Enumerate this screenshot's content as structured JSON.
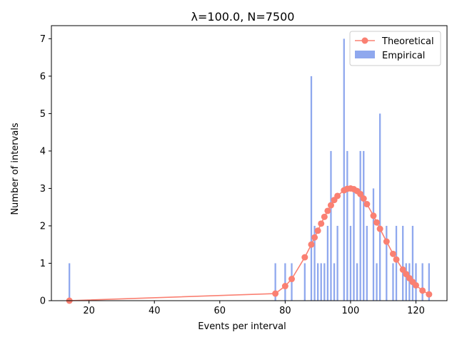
{
  "chart_data": {
    "type": "bar+line",
    "title": "λ=100.0, N=7500",
    "xlabel": "Events per interval",
    "ylabel": "Number of intervals",
    "xlim": [
      8.5,
      129.5
    ],
    "ylim": [
      0,
      7.35
    ],
    "xticks": [
      20,
      40,
      60,
      80,
      100,
      120
    ],
    "yticks": [
      0,
      1,
      2,
      3,
      4,
      5,
      6,
      7
    ],
    "grid": false,
    "legend_position": "top-right",
    "colors": {
      "theoretical": "#FA8072",
      "empirical": "#8FA8EE"
    },
    "series": [
      {
        "name": "Theoretical",
        "kind": "line",
        "x": [
          14,
          77,
          80,
          82,
          86,
          88,
          89,
          90,
          91,
          92,
          93,
          94,
          95,
          96,
          98,
          99,
          100,
          101,
          102,
          103,
          104,
          105,
          107,
          108,
          109,
          111,
          113,
          114,
          116,
          117,
          118,
          119,
          120,
          122,
          124
        ],
        "y": [
          0.0,
          0.19,
          0.39,
          0.58,
          1.16,
          1.5,
          1.69,
          1.87,
          2.06,
          2.24,
          2.4,
          2.55,
          2.69,
          2.8,
          2.95,
          2.99,
          3.0,
          2.98,
          2.93,
          2.85,
          2.73,
          2.58,
          2.27,
          2.09,
          1.92,
          1.58,
          1.25,
          1.1,
          0.83,
          0.71,
          0.6,
          0.5,
          0.41,
          0.27,
          0.17
        ]
      },
      {
        "name": "Empirical",
        "kind": "bar",
        "x": [
          14,
          77,
          80,
          82,
          86,
          88,
          89,
          90,
          91,
          92,
          93,
          94,
          95,
          96,
          98,
          99,
          100,
          101,
          102,
          103,
          104,
          105,
          107,
          108,
          109,
          111,
          113,
          114,
          116,
          117,
          118,
          119,
          120,
          122,
          124
        ],
        "values": [
          1,
          1,
          1,
          1,
          1,
          6,
          2,
          1,
          1,
          1,
          2,
          4,
          1,
          2,
          7,
          4,
          2,
          3,
          1,
          4,
          4,
          2,
          3,
          1,
          5,
          2,
          1,
          2,
          2,
          1,
          1,
          2,
          1,
          1,
          1
        ]
      }
    ]
  }
}
